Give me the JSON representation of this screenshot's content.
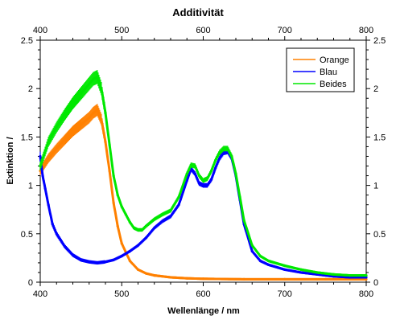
{
  "chart_data": {
    "type": "line",
    "title": "Additivität",
    "xlabel": "Wellenlänge / nm",
    "ylabel": "Extinktion /",
    "xlim": [
      400,
      800
    ],
    "ylim": [
      0,
      2.5
    ],
    "xticks": [
      400,
      500,
      600,
      700,
      800
    ],
    "yticks": [
      0,
      0.5,
      1,
      1.5,
      2,
      2.5
    ],
    "xtick_labels": [
      "400",
      "500",
      "600",
      "700",
      "800"
    ],
    "ytick_labels": [
      "0",
      "0.5",
      "1",
      "1.5",
      "2",
      "2.5"
    ],
    "grid": false,
    "legend_position": "top-right",
    "series": [
      {
        "name": "Orange",
        "color": "#ff8000",
        "error_bars": true,
        "x": [
          400,
          410,
          420,
          430,
          440,
          450,
          460,
          465,
          470,
          475,
          480,
          485,
          490,
          495,
          500,
          510,
          520,
          530,
          540,
          560,
          580,
          600,
          650,
          700,
          750,
          800
        ],
        "y": [
          1.15,
          1.28,
          1.38,
          1.47,
          1.56,
          1.63,
          1.7,
          1.75,
          1.78,
          1.68,
          1.45,
          1.15,
          0.82,
          0.58,
          0.4,
          0.22,
          0.13,
          0.09,
          0.07,
          0.05,
          0.04,
          0.035,
          0.03,
          0.03,
          0.03,
          0.03
        ]
      },
      {
        "name": "Blau",
        "color": "#0000ff",
        "error_bars": true,
        "x": [
          400,
          403,
          406,
          410,
          415,
          420,
          430,
          440,
          450,
          460,
          470,
          480,
          490,
          500,
          510,
          520,
          530,
          540,
          550,
          560,
          570,
          580,
          585,
          590,
          595,
          600,
          605,
          610,
          615,
          620,
          625,
          630,
          635,
          640,
          645,
          650,
          660,
          670,
          680,
          700,
          720,
          740,
          760,
          780,
          800
        ],
        "y": [
          1.3,
          1.1,
          0.97,
          0.8,
          0.6,
          0.5,
          0.37,
          0.28,
          0.23,
          0.21,
          0.2,
          0.21,
          0.23,
          0.27,
          0.32,
          0.38,
          0.46,
          0.56,
          0.63,
          0.68,
          0.8,
          1.05,
          1.17,
          1.12,
          1.02,
          1.0,
          1.0,
          1.06,
          1.18,
          1.28,
          1.34,
          1.35,
          1.28,
          1.1,
          0.85,
          0.6,
          0.32,
          0.22,
          0.18,
          0.13,
          0.1,
          0.08,
          0.06,
          0.05,
          0.05
        ]
      },
      {
        "name": "Beides",
        "color": "#00e800",
        "error_bars": true,
        "x": [
          400,
          410,
          420,
          430,
          440,
          450,
          460,
          465,
          470,
          475,
          480,
          485,
          490,
          495,
          500,
          505,
          510,
          515,
          520,
          525,
          530,
          540,
          550,
          560,
          570,
          580,
          585,
          590,
          595,
          600,
          605,
          610,
          615,
          620,
          625,
          630,
          635,
          640,
          645,
          650,
          660,
          670,
          680,
          700,
          720,
          740,
          760,
          780,
          800
        ],
        "y": [
          1.2,
          1.45,
          1.6,
          1.73,
          1.85,
          1.95,
          2.05,
          2.1,
          2.12,
          2.0,
          1.75,
          1.42,
          1.1,
          0.9,
          0.78,
          0.7,
          0.62,
          0.56,
          0.54,
          0.54,
          0.58,
          0.65,
          0.7,
          0.74,
          0.88,
          1.12,
          1.21,
          1.2,
          1.1,
          1.05,
          1.07,
          1.15,
          1.26,
          1.34,
          1.38,
          1.38,
          1.3,
          1.12,
          0.88,
          0.64,
          0.38,
          0.27,
          0.22,
          0.17,
          0.13,
          0.1,
          0.08,
          0.07,
          0.07
        ]
      }
    ]
  }
}
